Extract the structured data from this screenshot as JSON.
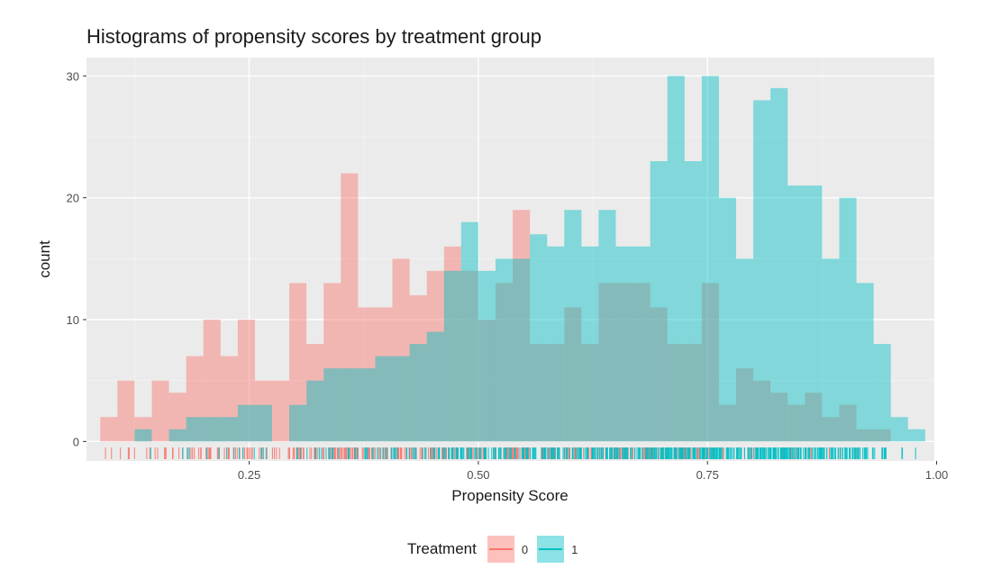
{
  "chart_data": {
    "type": "histogram",
    "title": "Histograms of propensity scores by treatment group",
    "xlabel": "Propensity Score",
    "ylabel": "count",
    "xlim": [
      0.0725,
      0.9975
    ],
    "ylim": [
      -1.6,
      31.5
    ],
    "x_ticks": [
      0.25,
      0.5,
      0.75,
      1.0
    ],
    "x_tick_labels": [
      "0.25",
      "0.50",
      "0.75",
      "1.00"
    ],
    "y_ticks": [
      0,
      10,
      20,
      30
    ],
    "y_tick_labels": [
      "0",
      "10",
      "20",
      "30"
    ],
    "bin_width": 0.01875,
    "bin_starts": [
      0.0875,
      0.10625,
      0.125,
      0.14375,
      0.1625,
      0.18125,
      0.2,
      0.21875,
      0.2375,
      0.25625,
      0.275,
      0.29375,
      0.3125,
      0.33125,
      0.35,
      0.36875,
      0.3875,
      0.40625,
      0.425,
      0.44375,
      0.4625,
      0.48125,
      0.5,
      0.51875,
      0.5375,
      0.55625,
      0.575,
      0.59375,
      0.6125,
      0.63125,
      0.65,
      0.66875,
      0.6875,
      0.70625,
      0.725,
      0.74375,
      0.7625,
      0.78125,
      0.8,
      0.81875,
      0.8375,
      0.85625,
      0.875,
      0.89375,
      0.9125,
      0.93125,
      0.95,
      0.96875
    ],
    "series": [
      {
        "name": "0",
        "color": "#F8766D",
        "values": [
          2,
          5,
          2,
          5,
          4,
          7,
          10,
          7,
          10,
          5,
          5,
          13,
          8,
          13,
          22,
          11,
          11,
          15,
          12,
          14,
          16,
          14,
          10,
          13,
          19,
          8,
          8,
          11,
          8,
          13,
          13,
          13,
          11,
          8,
          8,
          13,
          3,
          6,
          5,
          4,
          3,
          4,
          2,
          3,
          1,
          1,
          0,
          0
        ]
      },
      {
        "name": "1",
        "color": "#00BFC4",
        "values": [
          0,
          0,
          1,
          0,
          1,
          2,
          2,
          2,
          3,
          3,
          0,
          3,
          5,
          6,
          6,
          6,
          7,
          7,
          8,
          9,
          14,
          18,
          14,
          15,
          15,
          17,
          16,
          19,
          16,
          19,
          16,
          16,
          23,
          30,
          23,
          30,
          20,
          15,
          28,
          29,
          21,
          21,
          15,
          20,
          13,
          8,
          2,
          1
        ]
      }
    ],
    "rug_note": "individual observations shown as rug ticks below axis",
    "legend": {
      "title": "Treatment",
      "entries": [
        "0",
        "1"
      ],
      "position": "bottom"
    }
  }
}
